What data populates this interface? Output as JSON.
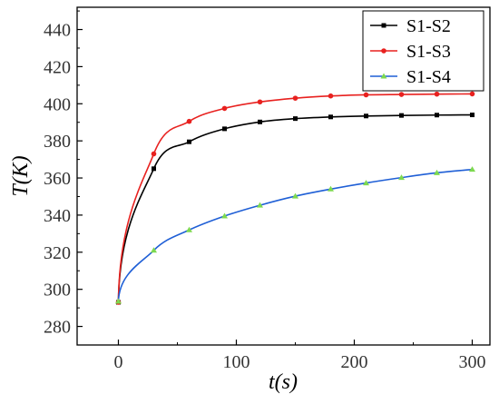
{
  "chart_data": {
    "type": "line",
    "title": "",
    "xlabel": "t(s)",
    "ylabel": "T(K)",
    "xlim": [
      -35,
      315
    ],
    "ylim": [
      270,
      452
    ],
    "xticks": [
      0,
      100,
      200,
      300
    ],
    "xtick_labels": [
      "0",
      "100",
      "200",
      "300"
    ],
    "yticks": [
      280,
      300,
      320,
      340,
      360,
      380,
      400,
      420,
      440
    ],
    "ytick_labels": [
      "280",
      "300",
      "320",
      "340",
      "360",
      "380",
      "400",
      "420",
      "440"
    ],
    "legend_position": "top-right",
    "grid": false,
    "series": [
      {
        "name": "S1-S2",
        "color": "#000000",
        "marker": "square",
        "x": [
          0,
          30,
          60,
          90,
          120,
          150,
          180,
          210,
          240,
          270,
          300
        ],
        "y": [
          293,
          365,
          379.5,
          386.5,
          390.2,
          392,
          392.9,
          393.4,
          393.7,
          393.9,
          394
        ]
      },
      {
        "name": "S1-S3",
        "color": "#e8211f",
        "marker": "circle",
        "x": [
          0,
          30,
          60,
          90,
          120,
          150,
          180,
          210,
          240,
          270,
          300
        ],
        "y": [
          293,
          373,
          390.5,
          397.5,
          401,
          403,
          404.2,
          404.8,
          405,
          405.2,
          405.3
        ]
      },
      {
        "name": "S1-S4",
        "color": "#1f5fd6",
        "marker": "triangle",
        "marker_color": "#7dd94f",
        "x": [
          0,
          30,
          60,
          90,
          120,
          150,
          180,
          210,
          240,
          270,
          300
        ],
        "y": [
          293.5,
          321,
          332,
          339.5,
          345.3,
          350.2,
          354,
          357.3,
          360.2,
          362.8,
          364.6
        ]
      }
    ]
  }
}
